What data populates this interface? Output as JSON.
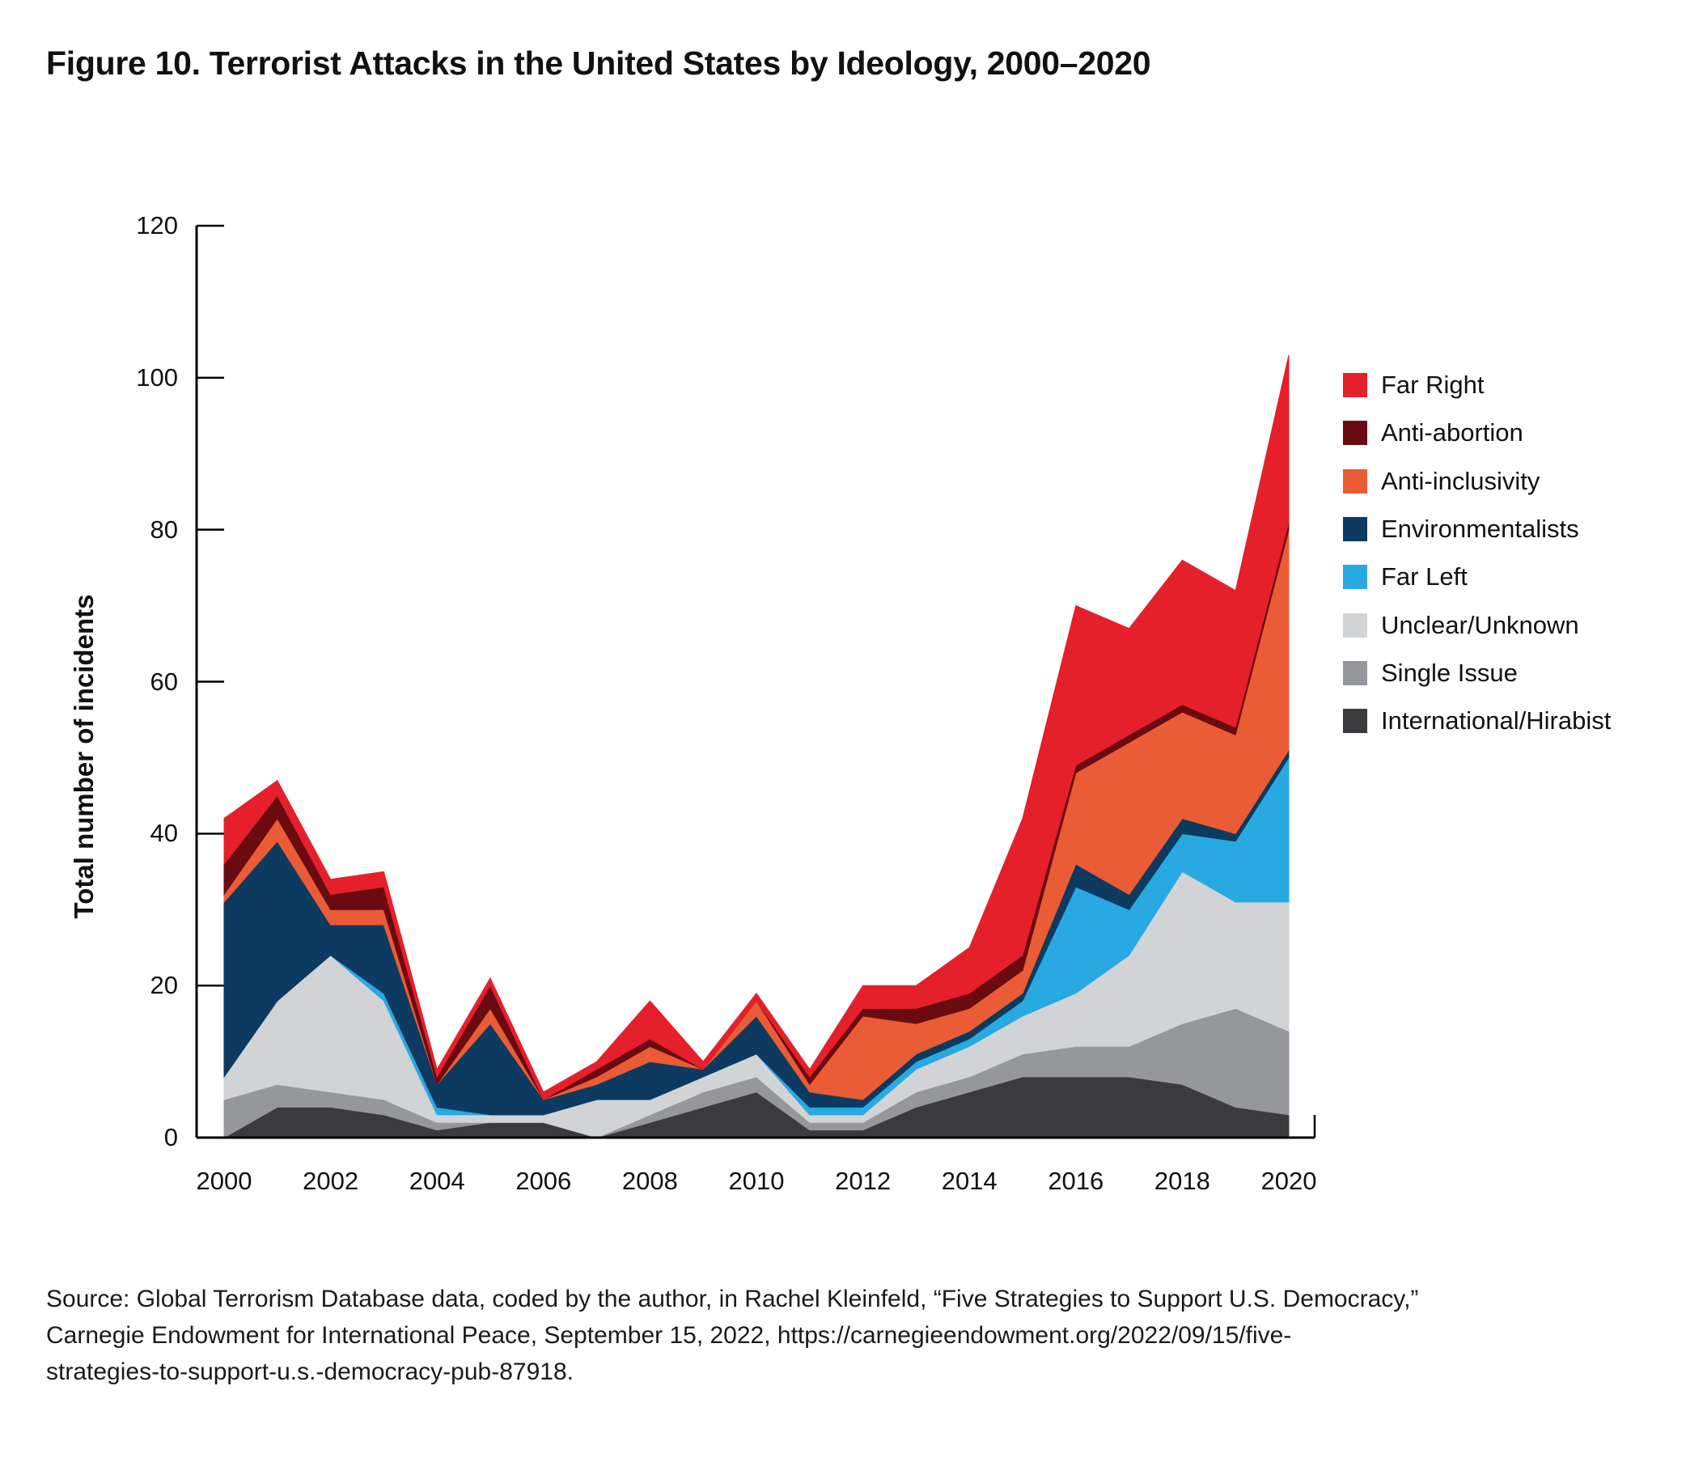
{
  "title": "Figure 10. Terrorist Attacks in the United States by Ideology, 2000–2020",
  "source": {
    "lines": [
      "Source: Global Terrorism Database data, coded by the author, in Rachel Kleinfeld, “Five Strategies to Support U.S. Democracy,”",
      "Carnegie Endowment for International Peace, September 15, 2022, https://carnegieendowment.org/2022/09/15/five-",
      "strategies-to-support-u.s.-democracy-pub-87918."
    ]
  },
  "chart_data": {
    "type": "area",
    "stacked": true,
    "title": "Figure 10. Terrorist Attacks in the United States by Ideology, 2000–2020",
    "xlabel": "",
    "ylabel": "Total number of incidents",
    "ylim": [
      0,
      120
    ],
    "yticks": [
      0,
      20,
      40,
      60,
      80,
      100,
      120
    ],
    "x": [
      2000,
      2001,
      2002,
      2003,
      2004,
      2005,
      2006,
      2007,
      2008,
      2009,
      2010,
      2011,
      2012,
      2013,
      2014,
      2015,
      2016,
      2017,
      2018,
      2019,
      2020
    ],
    "xticks": [
      2000,
      2002,
      2004,
      2006,
      2008,
      2010,
      2012,
      2014,
      2016,
      2018,
      2020
    ],
    "grid": false,
    "legend_position": "right",
    "stack_order_bottom_to_top": [
      "International/Hirabist",
      "Single Issue",
      "Unclear/Unknown",
      "Far Left",
      "Environmentalists",
      "Anti-inclusivity",
      "Anti-abortion",
      "Far Right"
    ],
    "series": [
      {
        "name": "Far Right",
        "color": "#e5202a",
        "values": [
          6,
          2,
          2,
          2,
          1,
          1,
          1,
          1,
          5,
          1,
          1,
          1,
          3,
          3,
          6,
          18,
          21,
          14,
          19,
          18,
          22
        ]
      },
      {
        "name": "Anti-abortion",
        "color": "#6a0b11",
        "values": [
          4,
          3,
          2,
          3,
          1,
          3,
          0,
          1,
          1,
          0,
          0,
          1,
          1,
          2,
          2,
          2,
          1,
          1,
          1,
          1,
          1
        ]
      },
      {
        "name": "Anti-inclusivity",
        "color": "#e95c35",
        "values": [
          1,
          3,
          2,
          2,
          0,
          2,
          0,
          1,
          2,
          0,
          2,
          1,
          11,
          4,
          3,
          3,
          12,
          20,
          14,
          13,
          29
        ]
      },
      {
        "name": "Environmentalists",
        "color": "#0c3a60",
        "values": [
          23,
          21,
          4,
          9,
          3,
          12,
          2,
          2,
          5,
          1,
          5,
          2,
          1,
          1,
          1,
          1,
          3,
          2,
          2,
          1,
          1
        ]
      },
      {
        "name": "Far Left",
        "color": "#29a9e1",
        "values": [
          0,
          0,
          0,
          1,
          1,
          0,
          0,
          0,
          0,
          0,
          0,
          1,
          1,
          1,
          1,
          2,
          14,
          6,
          5,
          8,
          19
        ]
      },
      {
        "name": "Unclear/Unknown",
        "color": "#d2d3d5",
        "values": [
          3,
          11,
          18,
          13,
          1,
          1,
          1,
          5,
          2,
          2,
          3,
          1,
          1,
          3,
          4,
          5,
          7,
          12,
          20,
          14,
          17
        ]
      },
      {
        "name": "Single Issue",
        "color": "#95979a",
        "values": [
          5,
          3,
          2,
          2,
          1,
          0,
          0,
          0,
          1,
          2,
          2,
          1,
          1,
          2,
          2,
          3,
          4,
          4,
          8,
          13,
          11
        ]
      },
      {
        "name": "International/Hirabist",
        "color": "#3b3b3d",
        "values": [
          0,
          4,
          4,
          3,
          1,
          2,
          2,
          0,
          2,
          4,
          6,
          1,
          1,
          4,
          6,
          8,
          8,
          8,
          7,
          4,
          3
        ]
      }
    ],
    "totals_by_year": [
      42,
      47,
      34,
      35,
      9,
      21,
      6,
      10,
      18,
      10,
      19,
      9,
      20,
      20,
      25,
      42,
      70,
      67,
      76,
      72,
      103
    ]
  }
}
